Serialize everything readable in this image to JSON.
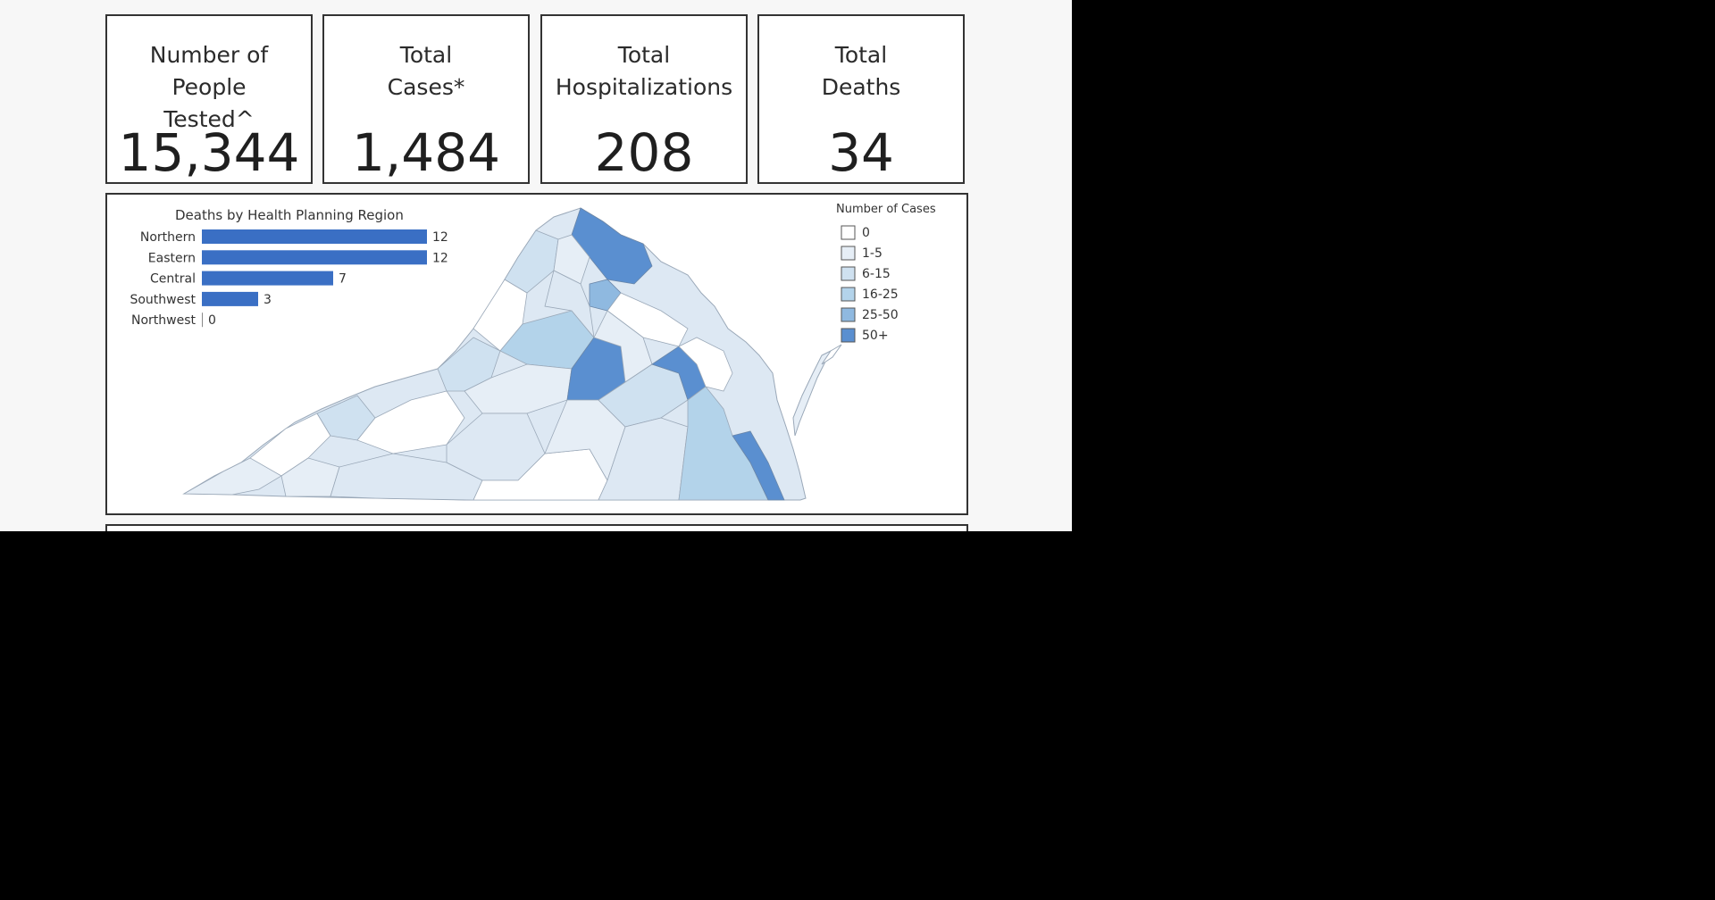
{
  "stats": [
    {
      "label": "Number of People\nTested^",
      "value": "15,344"
    },
    {
      "label": "Total\nCases*",
      "value": "1,484"
    },
    {
      "label": "Total\nHospitalizations",
      "value": "208"
    },
    {
      "label": "Total\nDeaths",
      "value": "34"
    }
  ],
  "chart_data": {
    "type": "bar",
    "orientation": "horizontal",
    "title": "Deaths by Health Planning Region",
    "categories": [
      "Northern",
      "Eastern",
      "Central",
      "Southwest",
      "Northwest"
    ],
    "values": [
      12,
      12,
      7,
      3,
      0
    ],
    "xlim": [
      0,
      12
    ],
    "grid": false,
    "bar_color": "#3a6fc4"
  },
  "map": {
    "legend_title": "Number of Cases",
    "legend": [
      {
        "label": "0",
        "color": "#ffffff"
      },
      {
        "label": "1-5",
        "color": "#e6eef6"
      },
      {
        "label": "6-15",
        "color": "#cfe1f0"
      },
      {
        "label": "16-25",
        "color": "#b3d3ea"
      },
      {
        "label": "25-50",
        "color": "#8fb9e0"
      },
      {
        "label": "50+",
        "color": "#5a8fd0"
      }
    ]
  }
}
